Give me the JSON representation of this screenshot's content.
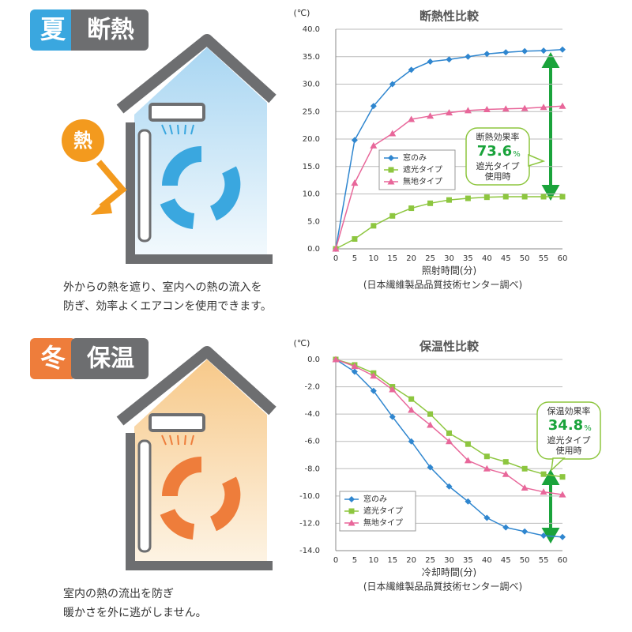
{
  "sections": [
    {
      "season": "夏",
      "label": "断熱",
      "heat": "熱",
      "description": [
        "外からの熱を遮り、室内への熱の流入を",
        "防ぎ、効率よくエアコンを使用できます。"
      ]
    },
    {
      "season": "冬",
      "label": "保温",
      "description": [
        "室内の熱の流出を防ぎ",
        "暖かさを外に逃がしません。"
      ]
    }
  ],
  "chart_data": [
    {
      "type": "line",
      "title": "断熱性比較",
      "y_unit": "(℃)",
      "x_label": "照射時間(分)",
      "source": "(日本繊維製品品質技術センター調べ)",
      "x": [
        0,
        5,
        10,
        15,
        20,
        25,
        30,
        35,
        40,
        45,
        50,
        55,
        60
      ],
      "xlim": [
        0,
        60
      ],
      "xticks": [
        0,
        5,
        10,
        15,
        20,
        25,
        30,
        35,
        40,
        45,
        50,
        55,
        60
      ],
      "ylim": [
        0,
        40
      ],
      "yticks": [
        {
          "value": 0,
          "label": "0.0"
        },
        {
          "value": 5,
          "label": "5.0"
        },
        {
          "value": 10,
          "label": "10.0"
        },
        {
          "value": 15,
          "label": "15.0"
        },
        {
          "value": 20,
          "label": "20.0"
        },
        {
          "value": 25,
          "label": "25.0"
        },
        {
          "value": 30,
          "label": "30.0"
        },
        {
          "value": 35,
          "label": "35.0"
        },
        {
          "value": 40,
          "label": "40.0"
        }
      ],
      "grid": true,
      "series": [
        {
          "name": "窓のみ",
          "color": "#2f86cf",
          "marker": "diamond",
          "values": [
            0,
            19.8,
            26,
            30,
            32.6,
            34.1,
            34.5,
            35,
            35.5,
            35.8,
            36,
            36.1,
            36.3
          ]
        },
        {
          "name": "遮光タイプ",
          "color": "#8dc63f",
          "marker": "square",
          "values": [
            0,
            1.8,
            4.2,
            6,
            7.4,
            8.3,
            8.9,
            9.2,
            9.4,
            9.5,
            9.5,
            9.5,
            9.5
          ]
        },
        {
          "name": "無地タイプ",
          "color": "#e8679a",
          "marker": "triangle",
          "values": [
            0,
            12,
            18.8,
            21,
            23.6,
            24.2,
            24.8,
            25.2,
            25.4,
            25.5,
            25.6,
            25.8,
            26
          ]
        }
      ],
      "annotation": {
        "title": "断熱効果率",
        "rate": "73.6",
        "unit": "%",
        "line1": "遮光タイプ",
        "line2": "使用時"
      }
    },
    {
      "type": "line",
      "title": "保温性比較",
      "y_unit": "(℃)",
      "x_label": "冷却時間(分)",
      "source": "(日本繊維製品品質技術センター調べ)",
      "x": [
        0,
        5,
        10,
        15,
        20,
        25,
        30,
        35,
        40,
        45,
        50,
        55,
        60
      ],
      "xlim": [
        0,
        60
      ],
      "xticks": [
        0,
        5,
        10,
        15,
        20,
        25,
        30,
        35,
        40,
        45,
        50,
        55,
        60
      ],
      "ylim": [
        -14,
        0
      ],
      "yticks": [
        {
          "value": 0,
          "label": "0.0"
        },
        {
          "value": -2,
          "label": "-2.0"
        },
        {
          "value": -4,
          "label": "-4.0"
        },
        {
          "value": -6,
          "label": "-6.0"
        },
        {
          "value": -8,
          "label": "-8.0"
        },
        {
          "value": -10,
          "label": "-10.0"
        },
        {
          "value": -12,
          "label": "-12.0"
        },
        {
          "value": -14,
          "label": "-14.0"
        }
      ],
      "grid": true,
      "series": [
        {
          "name": "窓のみ",
          "color": "#2f86cf",
          "marker": "diamond",
          "values": [
            0,
            -0.9,
            -2.3,
            -4.2,
            -6,
            -7.9,
            -9.3,
            -10.4,
            -11.6,
            -12.3,
            -12.6,
            -12.9,
            -13
          ]
        },
        {
          "name": "遮光タイプ",
          "color": "#8dc63f",
          "marker": "square",
          "values": [
            0,
            -0.4,
            -1,
            -2,
            -2.9,
            -4,
            -5.4,
            -6.2,
            -7.1,
            -7.5,
            -8,
            -8.4,
            -8.6
          ]
        },
        {
          "name": "無地タイプ",
          "color": "#e8679a",
          "marker": "triangle",
          "values": [
            0,
            -0.5,
            -1.2,
            -2.2,
            -3.7,
            -4.8,
            -6,
            -7.4,
            -8,
            -8.4,
            -9.4,
            -9.7,
            -9.9
          ]
        }
      ],
      "annotation": {
        "title": "保温効果率",
        "rate": "34.8",
        "unit": "%",
        "line1": "遮光タイプ",
        "line2": "使用時"
      }
    }
  ]
}
